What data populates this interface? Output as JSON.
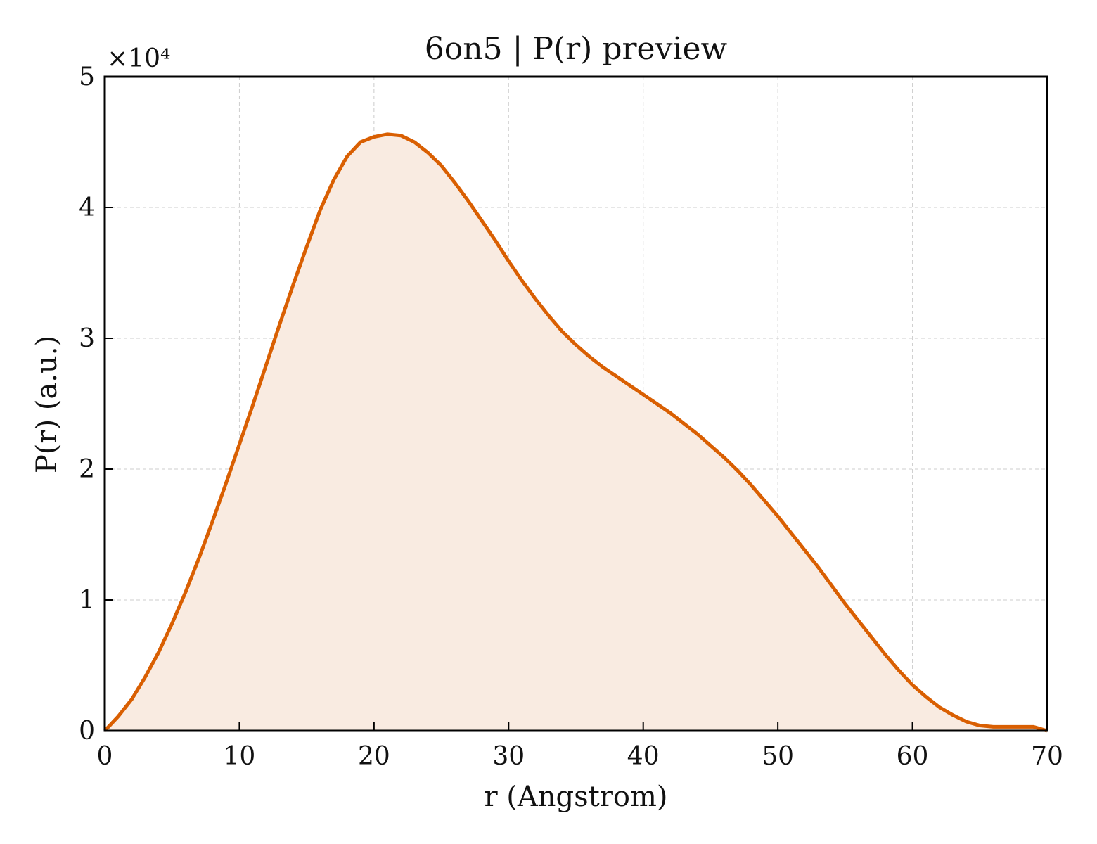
{
  "chart_data": {
    "type": "area",
    "title": "6on5 | P(r) preview",
    "xlabel": "r (Angstrom)",
    "ylabel": "P(r) (a.u.)",
    "y_multiplier_label": "×10⁴",
    "xlim": [
      0,
      70
    ],
    "ylim": [
      0,
      50000
    ],
    "xticks": [
      0,
      10,
      20,
      30,
      40,
      50,
      60,
      70
    ],
    "xtick_labels": [
      "0",
      "10",
      "20",
      "30",
      "40",
      "50",
      "60",
      "70"
    ],
    "yticks": [
      0,
      10000,
      20000,
      30000,
      40000,
      50000
    ],
    "ytick_labels": [
      "0",
      "1",
      "2",
      "3",
      "4",
      "5"
    ],
    "grid": true,
    "line_color": "#d95f02",
    "fill_color": "#f9ebe1",
    "series": [
      {
        "x": [
          0,
          1,
          2,
          3,
          4,
          5,
          6,
          7,
          8,
          9,
          10,
          11,
          12,
          13,
          14,
          15,
          16,
          17,
          18,
          19,
          20,
          21,
          22,
          23,
          24,
          25,
          26,
          27,
          28,
          29,
          30,
          31,
          32,
          33,
          34,
          35,
          36,
          37,
          38,
          39,
          40,
          41,
          42,
          43,
          44,
          45,
          46,
          47,
          48,
          49,
          50,
          51,
          52,
          53,
          54,
          55,
          56,
          57,
          58,
          59,
          60,
          61,
          62,
          63,
          64,
          65,
          66,
          67,
          68,
          69,
          70
        ],
        "y": [
          0,
          1100,
          2400,
          4100,
          6000,
          8200,
          10600,
          13200,
          16000,
          18900,
          21900,
          24900,
          28000,
          31100,
          34100,
          37000,
          39800,
          42100,
          43900,
          45000,
          45400,
          45600,
          45500,
          45000,
          44200,
          43200,
          41900,
          40500,
          39000,
          37500,
          35900,
          34400,
          33000,
          31700,
          30500,
          29500,
          28600,
          27800,
          27100,
          26400,
          25700,
          25000,
          24300,
          23500,
          22700,
          21800,
          20900,
          19900,
          18800,
          17600,
          16400,
          15100,
          13800,
          12500,
          11100,
          9700,
          8400,
          7100,
          5800,
          4600,
          3500,
          2600,
          1800,
          1200,
          700,
          400,
          300,
          300,
          300,
          300,
          0
        ]
      }
    ]
  }
}
